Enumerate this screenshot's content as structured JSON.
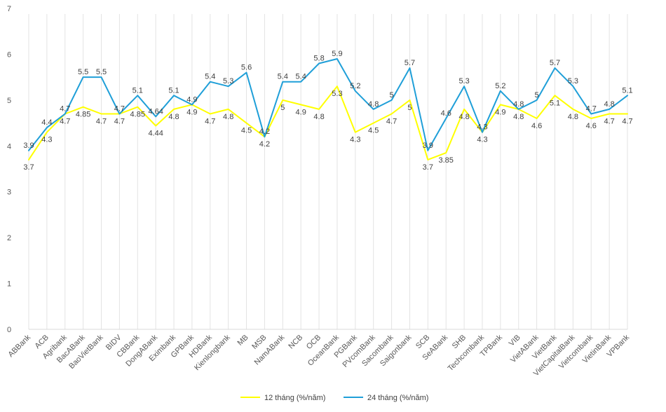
{
  "chart_data": {
    "type": "line",
    "title": "",
    "xlabel": "",
    "ylabel": "",
    "ylim": [
      0,
      7
    ],
    "yticks": [
      0,
      1,
      2,
      3,
      4,
      5,
      6,
      7
    ],
    "grid": "vertical",
    "legend_position": "bottom-center",
    "categories": [
      "ABBank",
      "ACB",
      "Agribank",
      "BacABank",
      "BaoVietBank",
      "BIDV",
      "CBBank",
      "DongABank",
      "Eximbank",
      "GPBank",
      "HDBank",
      "Kienlongbank",
      "MB",
      "MSB",
      "NamABank",
      "NCB",
      "OCB",
      "OceanBank",
      "PGBank",
      "PVcomBank",
      "Sacombank",
      "Saigonbank",
      "SCB",
      "SeABank",
      "SHB",
      "Techcombank",
      "TPBank",
      "VIB",
      "VietABank",
      "VietBank",
      "VietCapitalBank",
      "Vietcombank",
      "VietinBank",
      "VPBank"
    ],
    "series": [
      {
        "name": "12 tháng (%/năm)",
        "color": "#ffff00",
        "values": [
          3.7,
          4.3,
          4.7,
          4.85,
          4.7,
          4.7,
          4.85,
          4.44,
          4.8,
          4.9,
          4.7,
          4.8,
          4.5,
          4.2,
          5,
          4.9,
          4.8,
          5.3,
          4.3,
          4.5,
          4.7,
          5,
          3.7,
          3.85,
          4.8,
          4.3,
          4.9,
          4.8,
          4.6,
          5.1,
          4.8,
          4.6,
          4.7,
          4.7
        ],
        "labels": [
          "3.7",
          "4.3",
          "4.7",
          "4.85",
          "4.7",
          "4.7",
          "4.85",
          "4.44",
          "4.8",
          "4.9",
          "4.7",
          "4.8",
          "4.5",
          "4.2",
          "5",
          "4.9",
          "4.8",
          "5.3",
          "4.3",
          "4.5",
          "4.7",
          "5",
          "3.7",
          "3.85",
          "4.8",
          "4.3",
          "4.9",
          "4.8",
          "4.6",
          "5.1",
          "4.8",
          "4.6",
          "4.7",
          "4.7"
        ]
      },
      {
        "name": "24 tháng (%/năm)",
        "color": "#1f9fd8",
        "values": [
          3.9,
          4.4,
          4.7,
          5.5,
          5.5,
          4.7,
          5.1,
          4.64,
          5.1,
          4.9,
          5.4,
          5.3,
          5.6,
          4.2,
          5.4,
          5.4,
          5.8,
          5.9,
          5.2,
          4.8,
          5,
          5.7,
          3.9,
          4.6,
          5.3,
          4.3,
          5.2,
          4.8,
          5,
          5.7,
          5.3,
          4.7,
          4.8,
          5.1
        ],
        "labels": [
          "3.9",
          "4.4",
          "4.7",
          "5.5",
          "5.5",
          "4.7",
          "5.1",
          "4.64",
          "5.1",
          "4.9",
          "5.4",
          "5.3",
          "5.6",
          "4.2",
          "5.4",
          "5.4",
          "5.8",
          "5.9",
          "5.2",
          "4.8",
          "5",
          "5.7",
          "3.9",
          "4.6",
          "5.3",
          "4.3",
          "5.2",
          "4.8",
          "5",
          "5.7",
          "5.3",
          "4.7",
          "4.8",
          "5.1"
        ]
      }
    ]
  }
}
